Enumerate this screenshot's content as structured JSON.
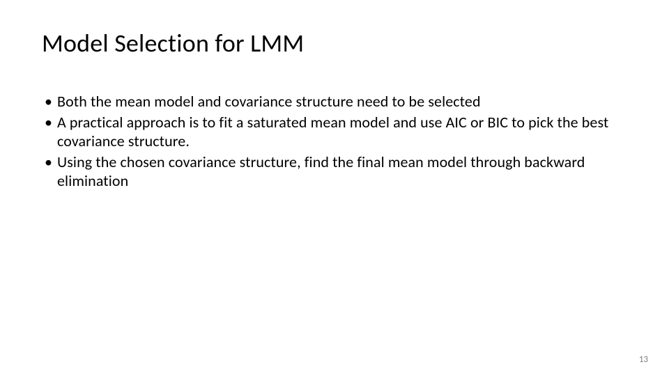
{
  "slide": {
    "title": "Model Selection for LMM",
    "bullets": [
      "Both the mean model and covariance structure need to be selected",
      "A practical approach is to fit a saturated mean model and use AIC or BIC to pick the best covariance structure.",
      "Using the chosen covariance structure, find the final mean model through backward elimination"
    ],
    "page_number": "13"
  },
  "styling": {
    "background_color": "#ffffff",
    "title_color": "#000000",
    "title_fontsize": 36,
    "title_fontweight": 400,
    "body_color": "#000000",
    "body_fontsize": 22,
    "page_number_color": "#808080",
    "page_number_fontsize": 13,
    "font_family": "Calibri"
  }
}
